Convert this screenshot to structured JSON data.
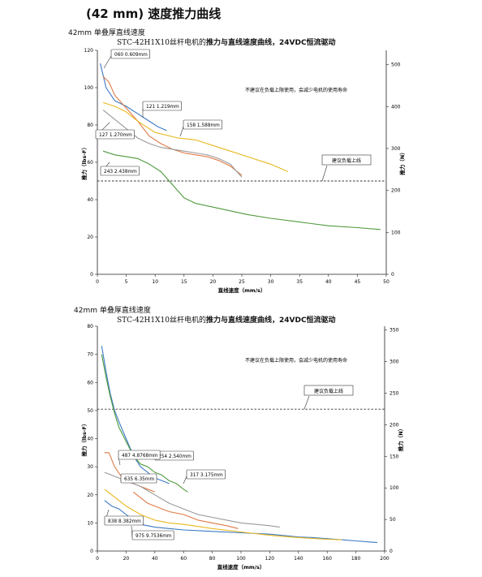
{
  "page": {
    "title": "(42 mm) 速度推力曲线",
    "sections": [
      {
        "label": "42mm 单叠厚直线速度",
        "chart_model": "STC-42H1X10丝杆电机的",
        "chart_title": "推力与直线速度曲线，24VDC恒流驱动"
      },
      {
        "label": "42mm 单叠厚直线速度",
        "chart_model": "STC-42H1X10丝杆电机的",
        "chart_title": "推力与直线速度曲线，24VDC恒流驱动"
      }
    ]
  },
  "chart_data": [
    {
      "type": "line",
      "xlabel": "直线速度（mm/s）",
      "ylabel": "推力（lbs-F）",
      "y2label": "推力（N）",
      "xlim": [
        0,
        50
      ],
      "ylim": [
        0,
        120
      ],
      "y2lim": [
        0,
        534
      ],
      "xticks": [
        0,
        5,
        10,
        15,
        20,
        25,
        30,
        35,
        40,
        45,
        50
      ],
      "yticks": [
        0,
        20,
        40,
        60,
        80,
        100,
        120
      ],
      "y2ticks": [
        0,
        100,
        200,
        300,
        400,
        500
      ],
      "grid": false,
      "note": "不建议在负载上限使用，会减少电机的使用寿命",
      "limit_line": {
        "value": 50,
        "label": "建议负载上线"
      },
      "series": [
        {
          "name": "060 0.609mm",
          "color": "#3a78c2",
          "x": [
            0.5,
            1.5,
            3,
            5,
            7,
            9,
            10.5,
            12
          ],
          "y": [
            113,
            100,
            93,
            90,
            86,
            82,
            79,
            77
          ]
        },
        {
          "name": "121 1.219mm",
          "color": "#e07a45",
          "x": [
            1,
            2,
            3,
            5,
            7,
            9,
            11,
            13,
            15,
            17,
            19,
            21,
            23,
            25
          ],
          "y": [
            106,
            103,
            96,
            89,
            82,
            74,
            70,
            67,
            65,
            64,
            63,
            61,
            58,
            53
          ]
        },
        {
          "name": "127 1.270mm",
          "color": "#9a9a9a",
          "x": [
            1,
            3,
            5,
            7,
            9,
            11,
            13,
            15,
            17,
            19,
            21,
            23,
            25
          ],
          "y": [
            88,
            83,
            78,
            73,
            70,
            68,
            67,
            66,
            65,
            64,
            62,
            59,
            52
          ]
        },
        {
          "name": "158 1.588mm",
          "color": "#e8b81f",
          "x": [
            1,
            3,
            5,
            7,
            10,
            14,
            17,
            20,
            23,
            26,
            30,
            33
          ],
          "y": [
            92,
            90,
            87,
            82,
            76,
            73,
            72,
            69,
            66,
            63,
            59,
            55
          ]
        },
        {
          "name": "243 2.438mm",
          "color": "#4e9a3c",
          "x": [
            1,
            3,
            5,
            7,
            9,
            11,
            13,
            15,
            17,
            20,
            23,
            26,
            30,
            35,
            40,
            45,
            49
          ],
          "y": [
            66,
            64,
            63,
            62,
            59,
            55,
            48,
            41,
            38,
            36,
            34,
            32,
            30,
            28,
            26,
            25,
            24
          ]
        }
      ]
    },
    {
      "type": "line",
      "xlabel": "直线速度（mm/s）",
      "ylabel": "推力（lbs-F）",
      "y2label": "推力（N）",
      "xlim": [
        0,
        200
      ],
      "ylim": [
        0,
        80
      ],
      "y2lim": [
        0,
        356
      ],
      "xticks": [
        0,
        20,
        40,
        60,
        80,
        100,
        120,
        140,
        160,
        180,
        200
      ],
      "yticks": [
        0,
        10,
        20,
        30,
        40,
        50,
        60,
        70,
        80
      ],
      "y2ticks": [
        0,
        50,
        100,
        150,
        200,
        250,
        300,
        350
      ],
      "grid": false,
      "note": "不建议在负载上限使用，会减少电机的使用寿命",
      "limit_line": {
        "value": 50.5,
        "label": "建议负载上线"
      },
      "series": [
        {
          "name": "254 2.540mm",
          "color": "#3a78c2",
          "x": [
            3,
            6,
            9,
            12,
            15,
            20,
            25,
            30,
            35,
            40,
            45,
            50
          ],
          "y": [
            73,
            64,
            56,
            50,
            46,
            40,
            34,
            30,
            28,
            26,
            25,
            24
          ]
        },
        {
          "name": "317 3.175mm",
          "color": "#4e9a3c",
          "x": [
            3,
            6,
            9,
            12,
            15,
            20,
            25,
            30,
            35,
            40,
            45,
            50,
            55,
            60,
            63
          ],
          "y": [
            70,
            62,
            55,
            49,
            44,
            39,
            34,
            31,
            30,
            28,
            27,
            25,
            24,
            22,
            21
          ]
        },
        {
          "name": "487 4.8768mm",
          "color": "#e07a45",
          "x": [
            5,
            8,
            12,
            16,
            20,
            25,
            30,
            35,
            40
          ],
          "y": [
            35,
            35,
            30,
            27,
            25,
            24,
            23,
            22,
            21
          ]
        },
        {
          "name": "635 6.35mm",
          "color": "#9a9a9a",
          "x": [
            5,
            10,
            15,
            20,
            25,
            30,
            40,
            50,
            60,
            70,
            80,
            90,
            100,
            110,
            120,
            127
          ],
          "y": [
            28,
            27,
            26,
            25,
            24,
            23,
            20,
            17,
            15,
            13,
            12,
            11,
            10,
            9.5,
            9,
            8.5
          ]
        },
        {
          "name": "635 6.35mm (1)",
          "color": "#e07a45",
          "x": [
            25,
            30,
            35,
            40,
            50,
            60,
            70,
            80,
            90,
            98
          ],
          "y": [
            21,
            19,
            17,
            16,
            14,
            13,
            11,
            10,
            9,
            8
          ]
        },
        {
          "name": "838 8.382mm",
          "color": "#3a78c2",
          "x": [
            5,
            10,
            15,
            20,
            25,
            30,
            40,
            50,
            60,
            80,
            100,
            120,
            140,
            150,
            160,
            170,
            180,
            190,
            195
          ],
          "y": [
            18,
            16,
            15,
            13,
            11,
            9.5,
            8.5,
            8,
            7.5,
            7,
            6.5,
            6,
            5,
            4.8,
            4.4,
            4,
            3.6,
            3.2,
            3
          ]
        },
        {
          "name": "975 9.7536mm",
          "color": "#e8b81f",
          "x": [
            5,
            10,
            20,
            30,
            40,
            50,
            60,
            80,
            100,
            120,
            140,
            160,
            170
          ],
          "y": [
            22,
            20,
            16,
            13,
            11,
            10,
            9.5,
            8,
            6.8,
            5.6,
            4.8,
            4.2,
            4
          ]
        }
      ]
    }
  ]
}
